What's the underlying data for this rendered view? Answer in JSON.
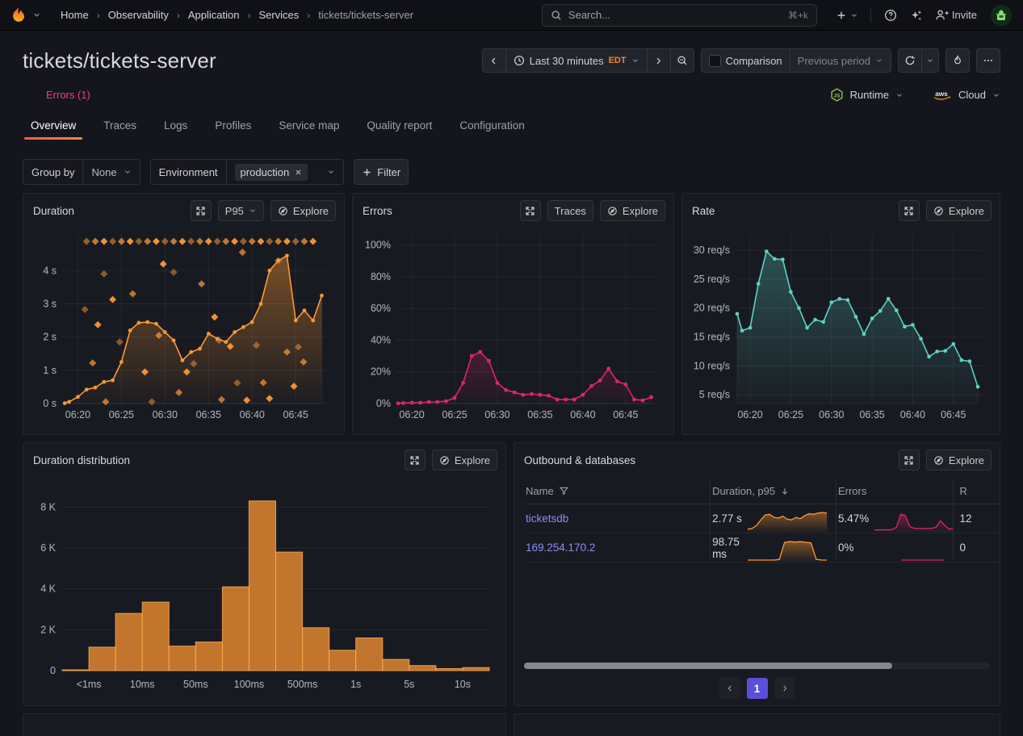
{
  "topnav": {
    "breadcrumbs": [
      "Home",
      "Observability",
      "Application",
      "Services",
      "tickets/tickets-server"
    ],
    "search": {
      "placeholder": "Search...",
      "shortcut": "⌘+k"
    },
    "invite_label": "Invite"
  },
  "header": {
    "title": "tickets/tickets-server",
    "time_range": "Last 30 minutes",
    "timezone": "EDT",
    "comparison_label": "Comparison",
    "comparison_value": "Previous period"
  },
  "subheader": {
    "errors_link": "Errors (1)",
    "runtime_label": "Runtime",
    "cloud_label": "Cloud"
  },
  "tabs": [
    "Overview",
    "Traces",
    "Logs",
    "Profiles",
    "Service map",
    "Quality report",
    "Configuration"
  ],
  "filters": {
    "group_by_label": "Group by",
    "group_by_value": "None",
    "environment_label": "Environment",
    "environment_value": "production",
    "add_filter_label": "Filter"
  },
  "panels": {
    "duration": {
      "title": "Duration",
      "percentile": "P95",
      "explore": "Explore"
    },
    "errors": {
      "title": "Errors",
      "traces": "Traces",
      "explore": "Explore"
    },
    "rate": {
      "title": "Rate",
      "explore": "Explore"
    },
    "distribution": {
      "title": "Duration distribution",
      "explore": "Explore"
    },
    "outbound": {
      "title": "Outbound & databases",
      "explore": "Explore",
      "columns": [
        "Name",
        "Duration, p95",
        "Errors",
        "R"
      ],
      "rows": [
        {
          "name": "ticketsdb",
          "duration": "2.77 s",
          "errors": "5.47%",
          "rate": "12"
        },
        {
          "name": "169.254.170.2",
          "duration": "98.75 ms",
          "errors": "0%",
          "rate": "0"
        }
      ],
      "page": "1"
    }
  },
  "icons": {
    "grafana-logo": "orange-flame-swirl",
    "search": "magnifier",
    "help": "question-circle",
    "ai": "sparkle",
    "invite": "person-plus",
    "clock": "clock-outline",
    "zoom-out": "magnifier-minus",
    "refresh": "sync-arrow",
    "flame": "fire-outline",
    "more": "ellipsis",
    "expand": "diagonal-arrows",
    "explore": "compass",
    "filter": "funnel",
    "sort": "arrow-down",
    "runtime": "nodejs-hexagon",
    "cloud": "aws-smile"
  },
  "colors": {
    "orange": "#ff9830",
    "pink": "#e0226e",
    "teal": "#5ad2c3",
    "link": "#8b8df2",
    "tab_accent": "#ff8833",
    "page_active": "#5a50d8",
    "errors_link": "#e8417c",
    "edt": "#ec8633"
  },
  "chart_data": {
    "duration": {
      "type": "line",
      "title": "Duration",
      "unit": "seconds",
      "color": "#ff9830",
      "fill_top": 0.42,
      "x": [
        18.5,
        19,
        20,
        21,
        22,
        23,
        24,
        25,
        26,
        27,
        28,
        29,
        30,
        31,
        32,
        33,
        34,
        35,
        36,
        37,
        38,
        39,
        40,
        41,
        42,
        43,
        44,
        45,
        46,
        47,
        48
      ],
      "values": [
        0.01,
        0.05,
        0.2,
        0.42,
        0.48,
        0.65,
        0.7,
        1.25,
        2.2,
        2.43,
        2.45,
        2.4,
        2.15,
        1.9,
        1.3,
        1.55,
        1.65,
        2.1,
        1.95,
        1.85,
        2.15,
        2.3,
        2.45,
        3.0,
        4.0,
        4.3,
        4.45,
        2.5,
        2.8,
        2.5,
        3.25
      ],
      "xlim": [
        18.2,
        48.6
      ],
      "ylim": [
        0,
        5.1
      ],
      "xticks": [
        20,
        25,
        30,
        35,
        40,
        45
      ],
      "xtick_labels": [
        "06:20",
        "06:25",
        "06:30",
        "06:35",
        "06:40",
        "06:45"
      ],
      "yticks": [
        0,
        1,
        2,
        3,
        4
      ],
      "ytick_labels": [
        "0 s",
        "1 s",
        "2 s",
        "3 s",
        "4 s"
      ],
      "exemplar_row": {
        "y": 4.88,
        "x": [
          21,
          22,
          23,
          24,
          25,
          26,
          27,
          28,
          29,
          30,
          31,
          32,
          33,
          34,
          35,
          36,
          37,
          38,
          39,
          40,
          41,
          42,
          43,
          44,
          45,
          46,
          47
        ]
      },
      "exemplars": [
        [
          20.8,
          2.83
        ],
        [
          21.7,
          1.22
        ],
        [
          22.3,
          2.37
        ],
        [
          23.0,
          3.9
        ],
        [
          23.2,
          0.05
        ],
        [
          24.0,
          3.13
        ],
        [
          24.8,
          1.85
        ],
        [
          26.3,
          3.3
        ],
        [
          27.7,
          0.95
        ],
        [
          28.5,
          0.05
        ],
        [
          29.3,
          2.05
        ],
        [
          29.8,
          4.2
        ],
        [
          31.0,
          3.95
        ],
        [
          31.6,
          0.33
        ],
        [
          32.5,
          0.95
        ],
        [
          33.3,
          1.2
        ],
        [
          34.2,
          3.6
        ],
        [
          35.7,
          2.6
        ],
        [
          36.2,
          1.9
        ],
        [
          36.5,
          0.12
        ],
        [
          37.5,
          1.72
        ],
        [
          38.3,
          0.62
        ],
        [
          38.9,
          4.55
        ],
        [
          39.4,
          0.1
        ],
        [
          40.5,
          1.75
        ],
        [
          41.3,
          0.63
        ],
        [
          42.0,
          0.15
        ],
        [
          43.0,
          4.3
        ],
        [
          44.0,
          1.55
        ],
        [
          44.8,
          0.52
        ],
        [
          45.3,
          1.7
        ],
        [
          45.9,
          1.25
        ]
      ]
    },
    "errors": {
      "type": "line",
      "title": "Errors",
      "unit": "percent",
      "color": "#e0226e",
      "fill_top": 0.25,
      "x": [
        18.4,
        19,
        20,
        21,
        22,
        23,
        24,
        25,
        26,
        27,
        28,
        29,
        30,
        31,
        32,
        33,
        34,
        35,
        36,
        37,
        38,
        39,
        40,
        41,
        42,
        43,
        44,
        45,
        46,
        47,
        48
      ],
      "values": [
        0.1,
        0.3,
        0.5,
        0.5,
        1,
        1,
        1.5,
        3.5,
        13,
        30,
        32.5,
        27,
        13,
        8.5,
        7,
        5.5,
        6,
        5.5,
        5,
        2.5,
        2.5,
        2.5,
        5.5,
        11,
        14.5,
        22,
        14,
        12,
        2.5,
        2,
        4
      ],
      "xlim": [
        18.2,
        48.6
      ],
      "ylim": [
        0,
        107
      ],
      "xticks": [
        20,
        25,
        30,
        35,
        40,
        45
      ],
      "xtick_labels": [
        "06:20",
        "06:25",
        "06:30",
        "06:35",
        "06:40",
        "06:45"
      ],
      "yticks": [
        0,
        20,
        40,
        60,
        80,
        100
      ],
      "ytick_labels": [
        "0%",
        "20%",
        "40%",
        "60%",
        "80%",
        "100%"
      ]
    },
    "rate": {
      "type": "line",
      "title": "Rate",
      "unit": "req/s",
      "color": "#5ad2c3",
      "fill_top": 0.3,
      "x": [
        18.4,
        19,
        20,
        21,
        22,
        23,
        24,
        25,
        26,
        27,
        28,
        29,
        30,
        31,
        32,
        33,
        34,
        35,
        36,
        37,
        38,
        39,
        40,
        41,
        42,
        43,
        44,
        45,
        46,
        47,
        48
      ],
      "values": [
        19,
        16.1,
        16.6,
        24.2,
        29.8,
        28.5,
        28.4,
        22.8,
        20,
        16.6,
        18,
        17.6,
        21,
        21.6,
        21.4,
        18.5,
        15.5,
        18.2,
        19.5,
        21.6,
        19.6,
        16.8,
        17.1,
        14.7,
        11.6,
        12.5,
        12.6,
        13.8,
        11,
        10.8,
        6.4
      ],
      "xlim": [
        18.2,
        48.6
      ],
      "ylim": [
        3.5,
        32.8
      ],
      "xticks": [
        20,
        25,
        30,
        35,
        40,
        45
      ],
      "xtick_labels": [
        "06:20",
        "06:25",
        "06:30",
        "06:35",
        "06:40",
        "06:45"
      ],
      "yticks": [
        5,
        10,
        15,
        20,
        25,
        30
      ],
      "ytick_labels": [
        "5 req/s",
        "10 req/s",
        "15 req/s",
        "20 req/s",
        "25 req/s",
        "30 req/s"
      ]
    },
    "distribution": {
      "type": "bar",
      "title": "Duration distribution",
      "color": "#e0862f",
      "stroke": "#ffb055",
      "values": [
        40,
        1150,
        2800,
        3350,
        1200,
        1400,
        4100,
        8300,
        5800,
        2100,
        1000,
        1600,
        550,
        250,
        100,
        150
      ],
      "categories": [
        "<1ms",
        "10ms",
        "50ms",
        "100ms",
        "500ms",
        "1s",
        "5s",
        "10s"
      ],
      "label_pos": [
        1,
        3,
        5,
        7,
        9,
        11,
        13,
        15
      ],
      "ylim": [
        0,
        9000
      ],
      "yticks": [
        0,
        2000,
        4000,
        6000,
        8000
      ],
      "ytick_labels": [
        "0",
        "2 K",
        "4 K",
        "6 K",
        "8 K"
      ]
    },
    "sparklines": {
      "ticketsdb_duration": {
        "type": "sparkline",
        "color": "#ff9830",
        "fill": true,
        "values": [
          0.3,
          0.4,
          0.9,
          1.8,
          2.6,
          2.7,
          2.2,
          2.1,
          2.4,
          1.9,
          1.8,
          2.2,
          2.0,
          2.5,
          2.8,
          2.7,
          2.9,
          3.0,
          2.9
        ]
      },
      "ticketsdb_errors": {
        "type": "sparkline",
        "color": "#e0226e",
        "fill": true,
        "values": [
          0.6,
          0.6,
          0.7,
          0.6,
          0.8,
          2,
          9,
          8.5,
          2.5,
          1.5,
          1.3,
          1.5,
          1.2,
          1.5,
          2,
          5.5,
          3,
          1,
          1.5
        ],
        "max": 10
      },
      "ip_duration": {
        "type": "sparkline",
        "color": "#ff9830",
        "fill": true,
        "values": [
          0,
          0,
          0,
          0,
          0,
          0,
          0.3,
          9,
          9.5,
          9.2,
          9.4,
          9.1,
          8.8,
          0.4,
          0,
          0
        ]
      },
      "ip_errors": {
        "type": "sparkline",
        "color": "#e0226e",
        "fill": false,
        "values": [
          0,
          0,
          0,
          0,
          0,
          0,
          0
        ],
        "start_frac": 0.45
      }
    }
  }
}
